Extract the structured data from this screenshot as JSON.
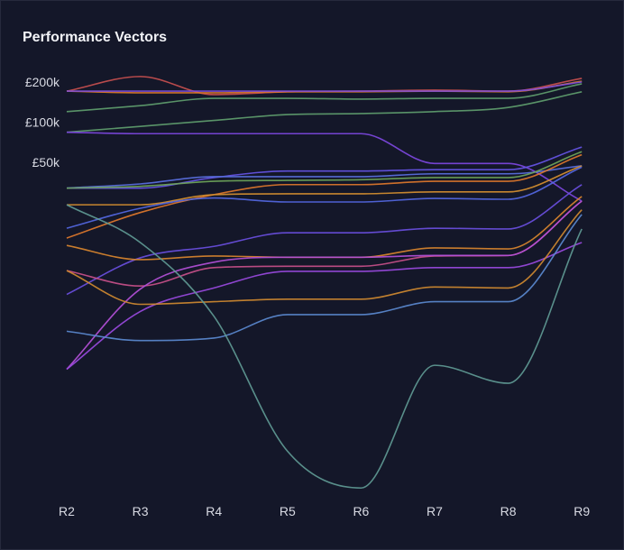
{
  "chart_data": {
    "type": "line",
    "title": "Performance Vectors",
    "xlabel": "",
    "ylabel": "",
    "yscale": "log",
    "grid": false,
    "legend": "none",
    "categories": [
      "R2",
      "R3",
      "R4",
      "R5",
      "R6",
      "R7",
      "R8",
      "R9"
    ],
    "y_ticks": [
      {
        "value": 200000,
        "label": "£200k"
      },
      {
        "value": 100000,
        "label": "£100k"
      },
      {
        "value": 50000,
        "label": "£50k"
      }
    ],
    "series": [
      {
        "color": "#c9504f",
        "values": [
          171000,
          220000,
          161000,
          169000,
          171000,
          174000,
          171000,
          213000
        ]
      },
      {
        "color": "#d97a2b",
        "values": [
          171000,
          166000,
          166000,
          169000,
          169000,
          171000,
          169000,
          203000
        ]
      },
      {
        "color": "#7c4ddc",
        "values": [
          171000,
          171000,
          171000,
          171000,
          171000,
          171000,
          171000,
          200000
        ]
      },
      {
        "color": "#5f9e6e",
        "values": [
          120000,
          133000,
          151000,
          151000,
          149000,
          151000,
          151000,
          194000
        ]
      },
      {
        "color": "#5f9e6e",
        "values": [
          84000,
          93000,
          103000,
          114000,
          116000,
          120000,
          129000,
          169000
        ]
      },
      {
        "color": "#7d48e0",
        "values": [
          84000,
          82000,
          82000,
          82000,
          82000,
          49000,
          49000,
          25600
        ]
      },
      {
        "color": "#6655e6",
        "values": [
          32000,
          32000,
          38400,
          43000,
          43000,
          44000,
          44000,
          65000
        ]
      },
      {
        "color": "#5a70e0",
        "values": [
          32000,
          34400,
          39000,
          39000,
          39000,
          41000,
          41000,
          47000
        ]
      },
      {
        "color": "#6fa65a",
        "values": [
          32000,
          33000,
          36000,
          36600,
          37000,
          38400,
          38400,
          60000
        ]
      },
      {
        "color": "#e0782b",
        "values": [
          13500,
          21000,
          28600,
          34000,
          34000,
          36000,
          36000,
          57000
        ]
      },
      {
        "color": "#d69030",
        "values": [
          24000,
          24000,
          28600,
          29000,
          29000,
          30000,
          30000,
          47000
        ]
      },
      {
        "color": "#5468e2",
        "values": [
          16000,
          22600,
          27000,
          25200,
          25200,
          26800,
          26400,
          46000
        ]
      },
      {
        "color": "#6a4fe0",
        "values": [
          5100,
          9600,
          11700,
          14800,
          14800,
          16000,
          15800,
          34000
        ]
      },
      {
        "color": "#d9862e",
        "values": [
          11900,
          9300,
          9900,
          9700,
          9700,
          11400,
          11200,
          27700
        ]
      },
      {
        "color": "#c9508a",
        "values": [
          7700,
          5900,
          8100,
          8300,
          8300,
          9900,
          10000,
          25600
        ]
      },
      {
        "color": "#b450d8",
        "values": [
          1400,
          5600,
          8900,
          9700,
          9700,
          10000,
          10000,
          25600
        ]
      },
      {
        "color": "#9a4ae0",
        "values": [
          1400,
          3800,
          5700,
          7600,
          7600,
          8100,
          8100,
          12500
        ]
      },
      {
        "color": "#d08a30",
        "values": [
          7700,
          4300,
          4500,
          4700,
          4700,
          5800,
          5700,
          22000
        ]
      },
      {
        "color": "#5b8ad0",
        "values": [
          2700,
          2300,
          2400,
          3600,
          3600,
          4500,
          4500,
          20300
        ]
      },
      {
        "color": "#5f9a94",
        "values": [
          24000,
          12500,
          3500,
          340,
          180,
          1500,
          1100,
          15800
        ]
      }
    ]
  }
}
